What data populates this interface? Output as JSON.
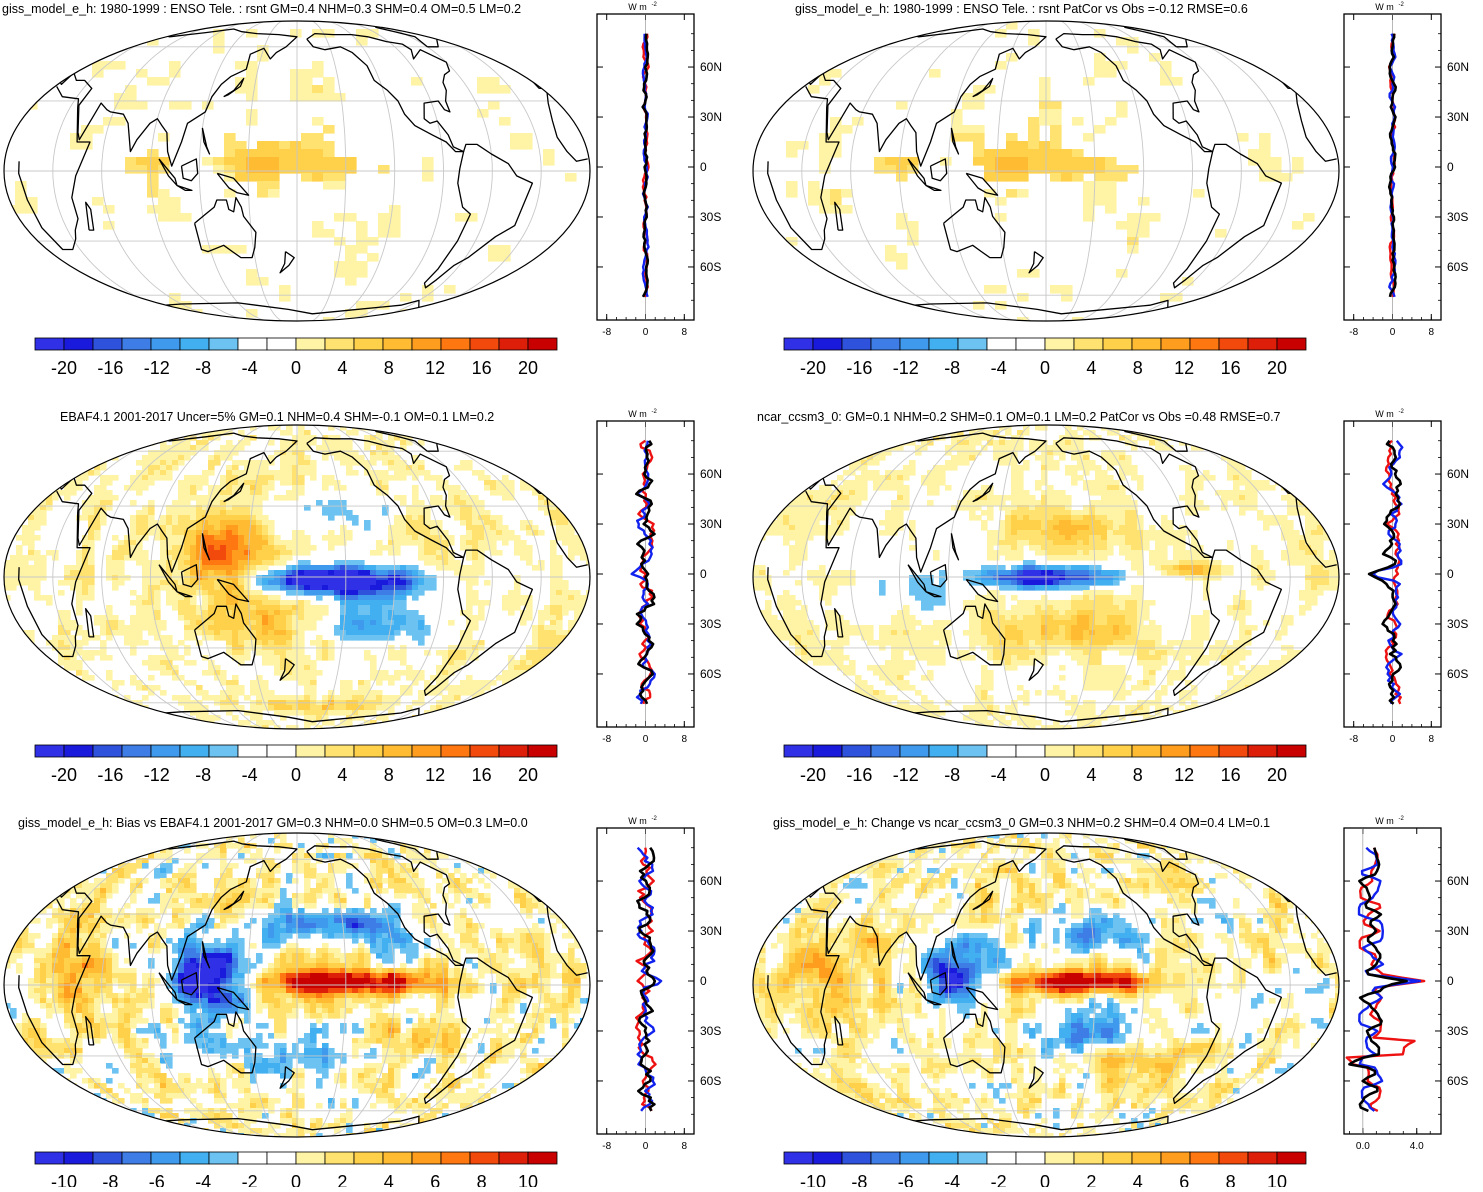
{
  "figure": {
    "colors": {
      "default_scale": [
        "#3030e6",
        "#1a1add",
        "#2f52dd",
        "#3f7de6",
        "#3f99ec",
        "#42b0f0",
        "#6cc3f2",
        "#ffffff",
        "#ffffff",
        "#fff3a6",
        "#ffe270",
        "#ffd04a",
        "#ffbb32",
        "#ff9d1e",
        "#ff7710",
        "#f24a0c",
        "#dd1f0a",
        "#c90000"
      ],
      "obs_line": "#ee1111",
      "model_line": "#1122ee",
      "change_line": "#000000",
      "grid": "#c8c8c8",
      "coast": "#000000"
    }
  },
  "colorbars": {
    "scale20": [
      "-20",
      "-16",
      "-12",
      "-8",
      "-4",
      "0",
      "4",
      "8",
      "12",
      "16",
      "20"
    ],
    "scale10": [
      "-10",
      "-8",
      "-6",
      "-4",
      "-2",
      "0",
      "2",
      "4",
      "6",
      "8",
      "10"
    ]
  },
  "profile_axes": {
    "unit_label": "W m",
    "unit_exp": "-2",
    "lat_labels": [
      "60N",
      "30N",
      "0",
      "30S",
      "60S"
    ],
    "x_ticks_default": [
      "-8",
      "0",
      "8"
    ],
    "x_ticks_change": [
      "0.0",
      "4.0"
    ]
  },
  "panels": [
    {
      "id": "p1",
      "title": "giss_model_e_h: 1980-1999 : ENSO Tele. : rsnt GM=0.4 NHM=0.3 SHM=0.4 OM=0.5 LM=0.2",
      "pattern": "model",
      "colorbar": "scale20"
    },
    {
      "id": "p2",
      "title": "giss_model_e_h: 1980-1999 : ENSO Tele. : rsnt PatCor vs Obs =-0.12 RMSE=0.6",
      "pattern": "model",
      "colorbar": "scale20"
    },
    {
      "id": "p3",
      "title": "EBAF4.1 2001-2017 Uncer=5% GM=0.1 NHM=0.4 SHM=-0.1 OM=0.1 LM=0.2",
      "pattern": "obs",
      "colorbar": "scale20"
    },
    {
      "id": "p4",
      "title": "ncar_ccsm3_0: GM=0.1 NHM=0.2 SHM=0.1 OM=0.1 LM=0.2 PatCor vs Obs =0.48 RMSE=0.7",
      "pattern": "ncar",
      "colorbar": "scale20"
    },
    {
      "id": "p5",
      "title": "giss_model_e_h: Bias vs EBAF4.1 2001-2017 GM=0.3 NHM=0.0 SHM=0.5 OM=0.3 LM=0.0",
      "pattern": "bias",
      "colorbar": "scale10"
    },
    {
      "id": "p6",
      "title": "giss_model_e_h: Change vs ncar_ccsm3_0 GM=0.3 NHM=0.2 SHM=0.4 OM=0.4 LM=0.1",
      "pattern": "change",
      "colorbar": "scale10"
    }
  ],
  "chart_data": [
    {
      "type": "heatmap",
      "title": "giss_model_e_h: 1980-1999 : ENSO Tele. : rsnt GM=0.4 NHM=0.3 SHM=0.4 OM=0.5 LM=0.2",
      "colorbar_ticks": [
        -20,
        -16,
        -12,
        -8,
        -4,
        0,
        4,
        8,
        12,
        16,
        20
      ],
      "zonal_profile": {
        "x_ticks": [
          -8,
          0,
          8
        ],
        "y_ticks": [
          "60N",
          "30N",
          "0",
          "30S",
          "60S"
        ]
      }
    },
    {
      "type": "heatmap",
      "title": "giss_model_e_h: 1980-1999 : ENSO Tele. : rsnt PatCor vs Obs =-0.12 RMSE=0.6",
      "colorbar_ticks": [
        -20,
        -16,
        -12,
        -8,
        -4,
        0,
        4,
        8,
        12,
        16,
        20
      ],
      "zonal_profile": {
        "x_ticks": [
          -8,
          0,
          8
        ],
        "y_ticks": [
          "60N",
          "30N",
          "0",
          "30S",
          "60S"
        ]
      }
    },
    {
      "type": "heatmap",
      "title": "EBAF4.1 2001-2017 Uncer=5% GM=0.1 NHM=0.4 SHM=-0.1 OM=0.1 LM=0.2",
      "colorbar_ticks": [
        -20,
        -16,
        -12,
        -8,
        -4,
        0,
        4,
        8,
        12,
        16,
        20
      ],
      "zonal_profile": {
        "x_ticks": [
          -8,
          0,
          8
        ],
        "y_ticks": [
          "60N",
          "30N",
          "0",
          "30S",
          "60S"
        ]
      }
    },
    {
      "type": "heatmap",
      "title": "ncar_ccsm3_0: GM=0.1 NHM=0.2 SHM=0.1 OM=0.1 LM=0.2 PatCor vs Obs =0.48 RMSE=0.7",
      "colorbar_ticks": [
        -20,
        -16,
        -12,
        -8,
        -4,
        0,
        4,
        8,
        12,
        16,
        20
      ],
      "zonal_profile": {
        "x_ticks": [
          -8,
          0,
          8
        ],
        "y_ticks": [
          "60N",
          "30N",
          "0",
          "30S",
          "60S"
        ]
      }
    },
    {
      "type": "heatmap",
      "title": "giss_model_e_h: Bias vs EBAF4.1 2001-2017 GM=0.3 NHM=0.0 SHM=0.5 OM=0.3 LM=0.0",
      "colorbar_ticks": [
        -10,
        -8,
        -6,
        -4,
        -2,
        0,
        2,
        4,
        6,
        8,
        10
      ],
      "zonal_profile": {
        "x_ticks": [
          -8,
          0,
          8
        ],
        "y_ticks": [
          "60N",
          "30N",
          "0",
          "30S",
          "60S"
        ]
      }
    },
    {
      "type": "heatmap",
      "title": "giss_model_e_h: Change vs ncar_ccsm3_0 GM=0.3 NHM=0.2 SHM=0.4 OM=0.4 LM=0.1",
      "colorbar_ticks": [
        -10,
        -8,
        -6,
        -4,
        -2,
        0,
        2,
        4,
        6,
        8,
        10
      ],
      "zonal_profile": {
        "x_ticks": [
          0.0,
          4.0
        ],
        "y_ticks": [
          "60N",
          "30N",
          "0",
          "30S",
          "60S"
        ]
      }
    }
  ]
}
